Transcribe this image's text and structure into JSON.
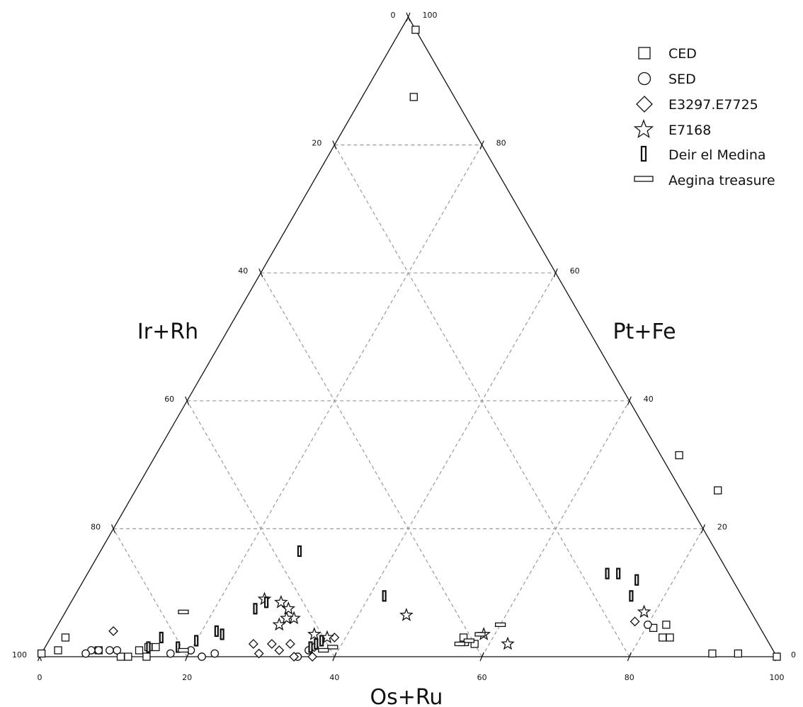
{
  "chart_data": {
    "type": "scatter",
    "subtype": "ternary",
    "title": "",
    "axes": {
      "bottom": {
        "label": "Os+Ru",
        "ticks": [
          "0",
          "20",
          "40",
          "60",
          "80",
          "100"
        ]
      },
      "left": {
        "label": "Ir+Rh",
        "ticks": [
          "0",
          "20",
          "40",
          "60",
          "80",
          "100"
        ]
      },
      "right": {
        "label": "Pt+Fe",
        "ticks": [
          "100",
          "80",
          "60",
          "40",
          "20",
          "0"
        ]
      }
    },
    "range": [
      0,
      100
    ],
    "grid": true,
    "grid_step": 20,
    "legend_position": "top-right",
    "legend": [
      {
        "name": "CED",
        "marker": "square"
      },
      {
        "name": "SED",
        "marker": "circle"
      },
      {
        "name": "E3297.E7725",
        "marker": "diamond"
      },
      {
        "name": "E7168",
        "marker": "star"
      },
      {
        "name": "Deir el Medina",
        "marker": "vertical-bar"
      },
      {
        "name": "Aegina treasure",
        "marker": "horizontal-bar"
      }
    ],
    "series": [
      {
        "name": "CED",
        "marker": "square",
        "points": [
          {
            "os_ru": 2,
            "pt_fe": 98
          },
          {
            "os_ru": 7,
            "pt_fe": 87.5
          },
          {
            "os_ru": 71,
            "pt_fe": 31.5
          },
          {
            "os_ru": 79,
            "pt_fe": 26
          },
          {
            "os_ru": 84,
            "pt_fe": 3
          },
          {
            "os_ru": 82.5,
            "pt_fe": 5
          },
          {
            "os_ru": 81,
            "pt_fe": 4.5
          },
          {
            "os_ru": 83,
            "pt_fe": 3
          },
          {
            "os_ru": 91,
            "pt_fe": 0.5
          },
          {
            "os_ru": 94.5,
            "pt_fe": 0.5
          },
          {
            "os_ru": 100,
            "pt_fe": 0
          },
          {
            "os_ru": 58,
            "pt_fe": 2
          },
          {
            "os_ru": 56,
            "pt_fe": 3
          },
          {
            "os_ru": 2,
            "pt_fe": 1
          },
          {
            "os_ru": 0,
            "pt_fe": 0.5
          },
          {
            "os_ru": 2,
            "pt_fe": 3
          },
          {
            "os_ru": 7.5,
            "pt_fe": 1
          },
          {
            "os_ru": 11,
            "pt_fe": 0
          },
          {
            "os_ru": 12,
            "pt_fe": 0
          },
          {
            "os_ru": 13,
            "pt_fe": 1
          },
          {
            "os_ru": 14.5,
            "pt_fe": 0
          },
          {
            "os_ru": 14,
            "pt_fe": 1.5
          },
          {
            "os_ru": 15,
            "pt_fe": 1.5
          }
        ]
      },
      {
        "name": "SED",
        "marker": "circle",
        "points": [
          {
            "os_ru": 80,
            "pt_fe": 5
          },
          {
            "os_ru": 20,
            "pt_fe": 1
          },
          {
            "os_ru": 22,
            "pt_fe": 0
          },
          {
            "os_ru": 17.5,
            "pt_fe": 0.5
          },
          {
            "os_ru": 10,
            "pt_fe": 1
          },
          {
            "os_ru": 9,
            "pt_fe": 1
          },
          {
            "os_ru": 7.5,
            "pt_fe": 1
          },
          {
            "os_ru": 6.5,
            "pt_fe": 1
          },
          {
            "os_ru": 35,
            "pt_fe": 0
          },
          {
            "os_ru": 36,
            "pt_fe": 1
          },
          {
            "os_ru": 23.5,
            "pt_fe": 0.5
          },
          {
            "os_ru": 6,
            "pt_fe": 0.5
          }
        ]
      },
      {
        "name": "E3297.E7725",
        "marker": "diamond",
        "points": [
          {
            "os_ru": 78,
            "pt_fe": 5.5
          },
          {
            "os_ru": 8,
            "pt_fe": 4
          },
          {
            "os_ru": 38.5,
            "pt_fe": 3
          },
          {
            "os_ru": 36.5,
            "pt_fe": 1.5
          },
          {
            "os_ru": 37,
            "pt_fe": 0
          },
          {
            "os_ru": 33,
            "pt_fe": 2
          },
          {
            "os_ru": 34.5,
            "pt_fe": 0
          },
          {
            "os_ru": 32,
            "pt_fe": 1
          },
          {
            "os_ru": 30.5,
            "pt_fe": 2
          },
          {
            "os_ru": 29.5,
            "pt_fe": 0.5
          },
          {
            "os_ru": 28,
            "pt_fe": 2
          }
        ]
      },
      {
        "name": "E7168",
        "marker": "star",
        "points": [
          {
            "os_ru": 78.5,
            "pt_fe": 7
          },
          {
            "os_ru": 46.5,
            "pt_fe": 6.5
          },
          {
            "os_ru": 37.5,
            "pt_fe": 3
          },
          {
            "os_ru": 35.5,
            "pt_fe": 3.5
          },
          {
            "os_ru": 31.5,
            "pt_fe": 6
          },
          {
            "os_ru": 30.5,
            "pt_fe": 6
          },
          {
            "os_ru": 30,
            "pt_fe": 7.5
          },
          {
            "os_ru": 30,
            "pt_fe": 5
          },
          {
            "os_ru": 28.5,
            "pt_fe": 8.5
          },
          {
            "os_ru": 26,
            "pt_fe": 9
          },
          {
            "os_ru": 62.5,
            "pt_fe": 2
          },
          {
            "os_ru": 58.5,
            "pt_fe": 3.5
          }
        ]
      },
      {
        "name": "Deir el Medina",
        "marker": "vertical-bar",
        "points": [
          {
            "os_ru": 75.5,
            "pt_fe": 9.5
          },
          {
            "os_ru": 75,
            "pt_fe": 12
          },
          {
            "os_ru": 72,
            "pt_fe": 13
          },
          {
            "os_ru": 70.5,
            "pt_fe": 13
          },
          {
            "os_ru": 42,
            "pt_fe": 9.5
          },
          {
            "os_ru": 37,
            "pt_fe": 2.5
          },
          {
            "os_ru": 36.5,
            "pt_fe": 2
          },
          {
            "os_ru": 36,
            "pt_fe": 1.5
          },
          {
            "os_ru": 27,
            "pt_fe": 16.5
          },
          {
            "os_ru": 26.5,
            "pt_fe": 8.5
          },
          {
            "os_ru": 25.5,
            "pt_fe": 7.5
          },
          {
            "os_ru": 23,
            "pt_fe": 3.5
          },
          {
            "os_ru": 22,
            "pt_fe": 4
          },
          {
            "os_ru": 20,
            "pt_fe": 2.5
          },
          {
            "os_ru": 18,
            "pt_fe": 1.5
          },
          {
            "os_ru": 14,
            "pt_fe": 1.5
          },
          {
            "os_ru": 15,
            "pt_fe": 3
          }
        ]
      },
      {
        "name": "Aegina treasure",
        "marker": "horizontal-bar",
        "points": [
          {
            "os_ru": 58,
            "pt_fe": 3.5
          },
          {
            "os_ru": 56.5,
            "pt_fe": 2
          },
          {
            "os_ru": 57,
            "pt_fe": 2.5
          },
          {
            "os_ru": 56,
            "pt_fe": 2
          },
          {
            "os_ru": 60,
            "pt_fe": 5
          },
          {
            "os_ru": 39,
            "pt_fe": 1.5
          },
          {
            "os_ru": 38,
            "pt_fe": 1
          },
          {
            "os_ru": 16,
            "pt_fe": 7
          },
          {
            "os_ru": 19,
            "pt_fe": 1
          }
        ]
      }
    ]
  }
}
